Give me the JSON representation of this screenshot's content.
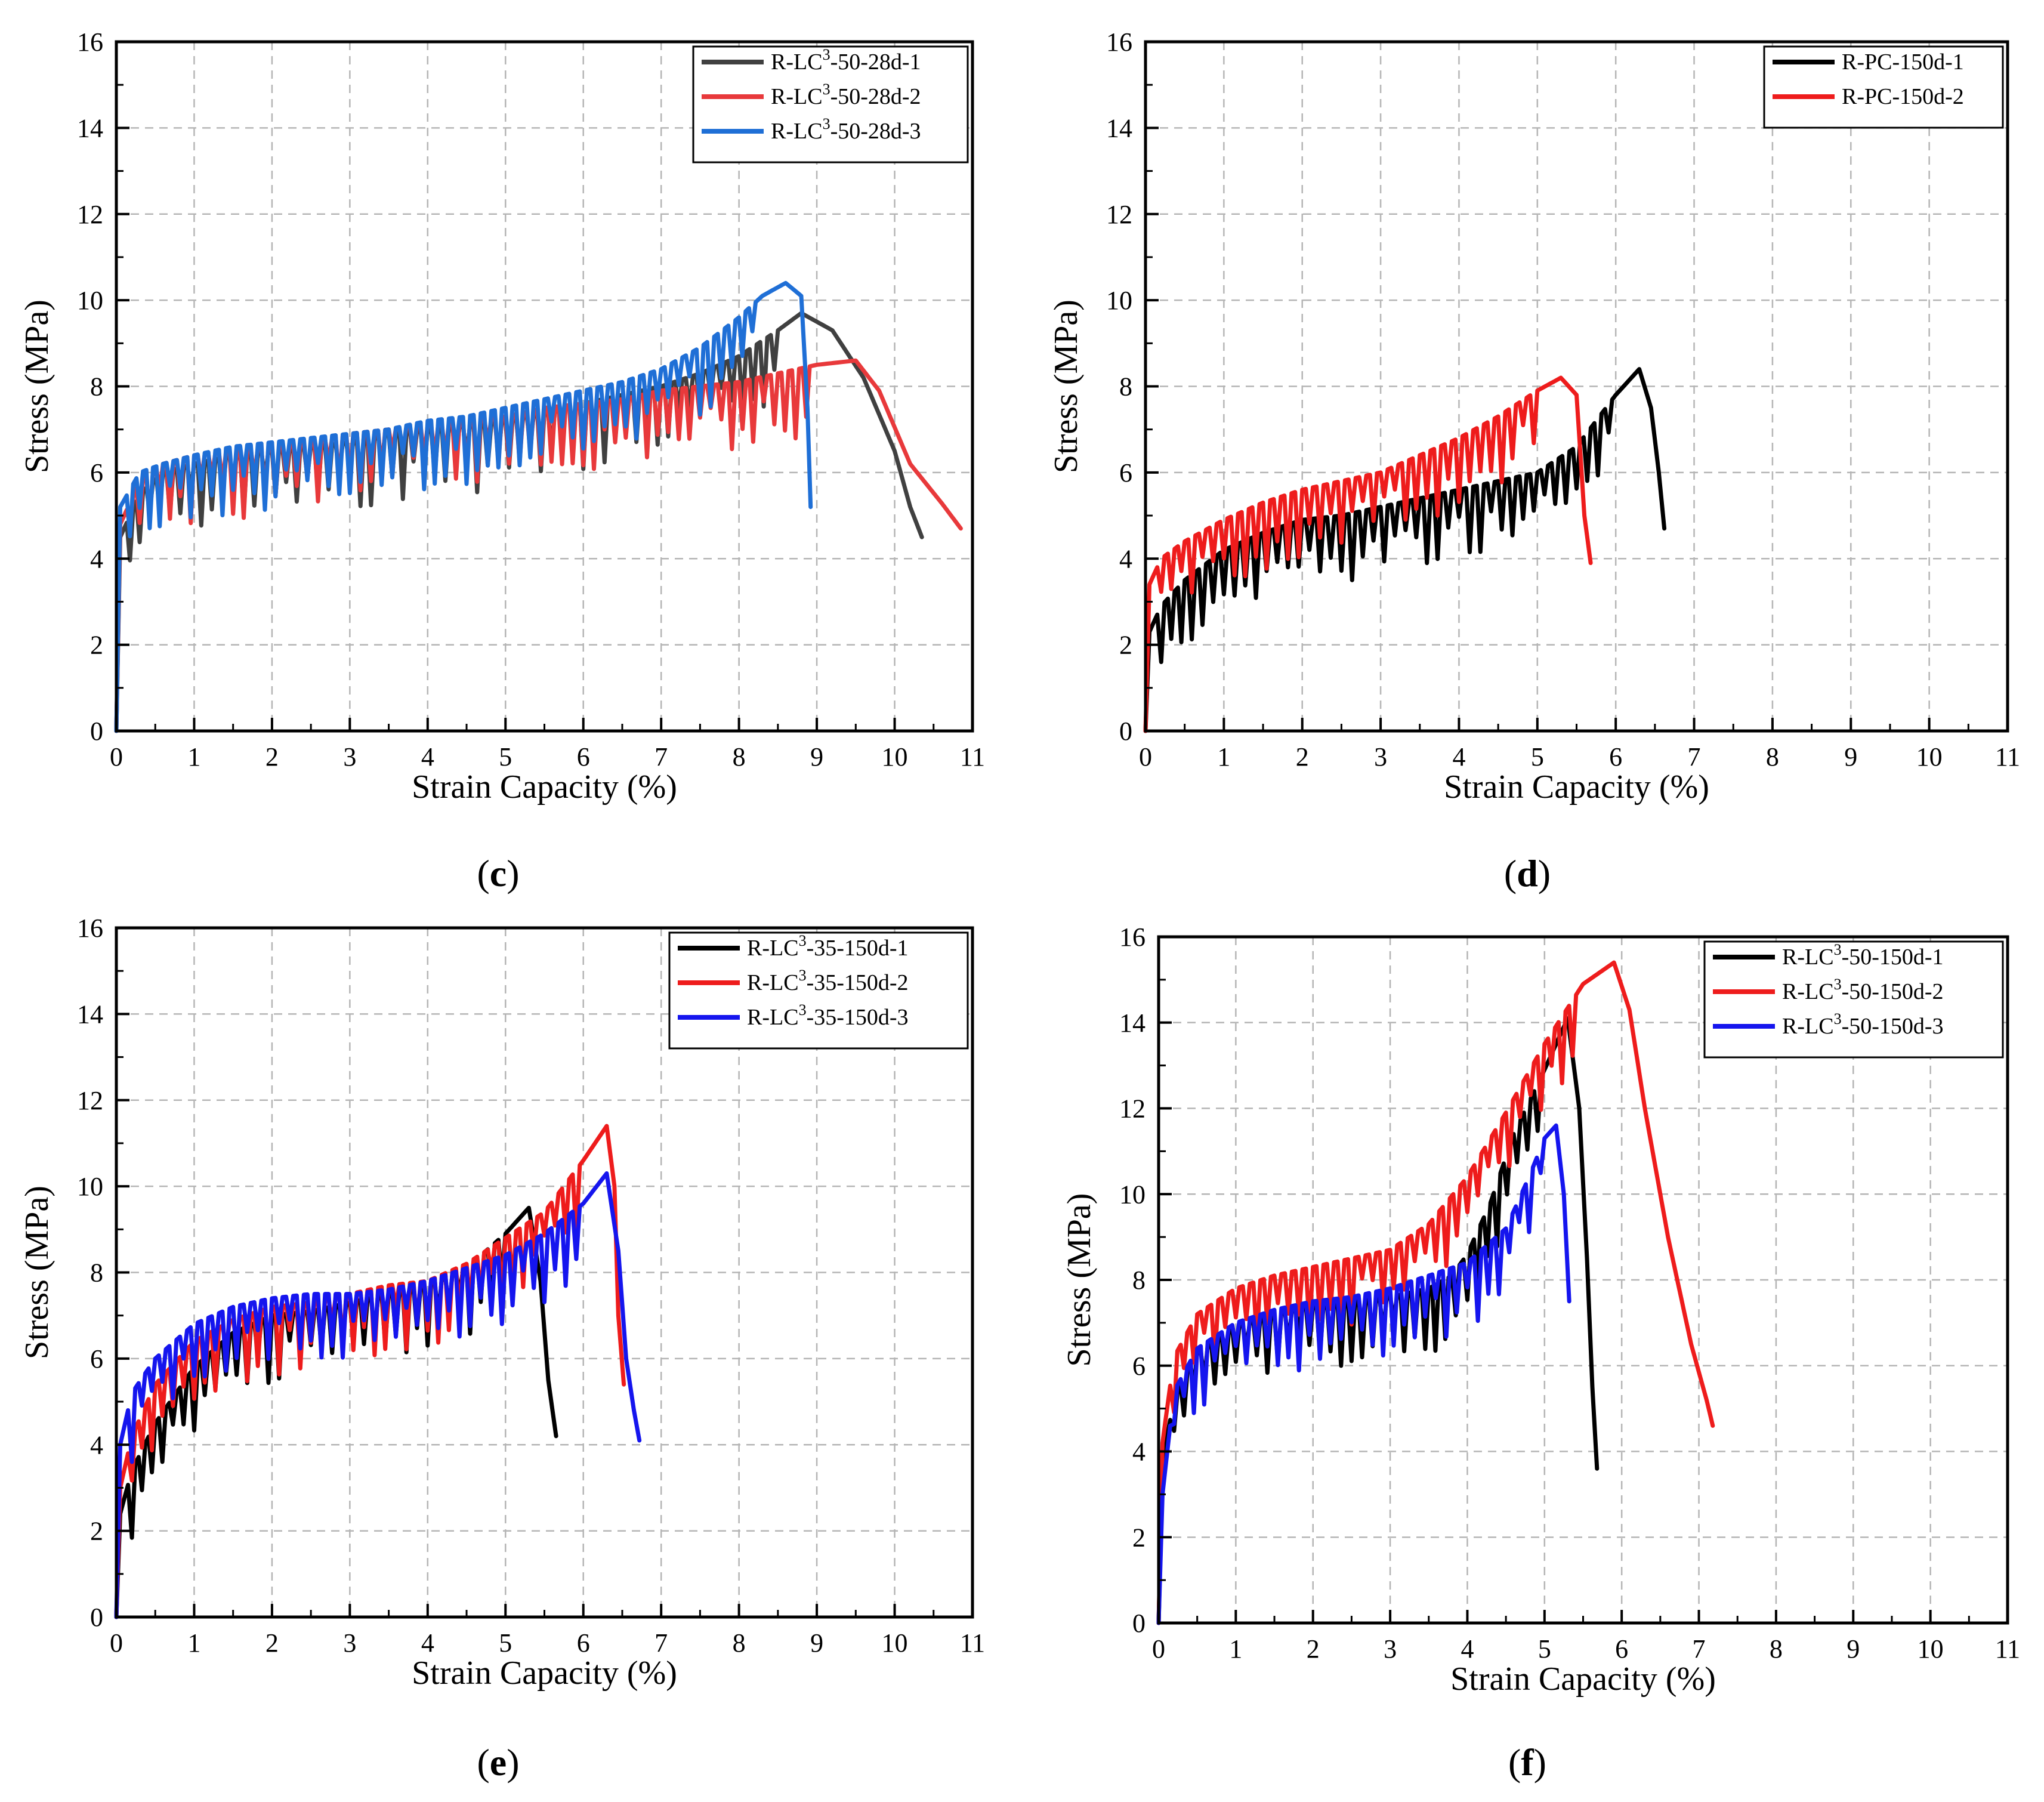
{
  "figure": {
    "panels": [
      {
        "id": "c",
        "caption_open": "(",
        "caption_letter": "c",
        "caption_close": ")"
      },
      {
        "id": "d",
        "caption_open": "(",
        "caption_letter": "d",
        "caption_close": ")"
      },
      {
        "id": "e",
        "caption_open": "(",
        "caption_letter": "e",
        "caption_close": ")"
      },
      {
        "id": "f",
        "caption_open": "(",
        "caption_letter": "f",
        "caption_close": ")"
      }
    ]
  },
  "chart_data": [
    {
      "type": "line",
      "panel": "c",
      "xlabel": "Strain Capacity (%)",
      "ylabel": "Stress (MPa)",
      "xlim": [
        0,
        11
      ],
      "ylim": [
        0,
        16
      ],
      "xticks": [
        0,
        1,
        2,
        3,
        4,
        5,
        6,
        7,
        8,
        9,
        10,
        11
      ],
      "yticks": [
        0,
        2,
        4,
        6,
        8,
        10,
        12,
        14,
        16
      ],
      "grid": true,
      "legend_position": "top-right",
      "series": [
        {
          "name": "R-LC3-50-28d-1",
          "label_pre": "R-LC",
          "label_sup": "3",
          "label_post": "-50-28d-1",
          "color": "#404040",
          "x": [
            0,
            0.05,
            0.3,
            0.6,
            1.0,
            1.5,
            2.0,
            2.5,
            3.0,
            3.5,
            4.0,
            4.5,
            5.0,
            5.5,
            6.0,
            6.5,
            7.0,
            7.5,
            8.0,
            8.5,
            8.8,
            9.2,
            9.6,
            10.0,
            10.2,
            10.35
          ],
          "y": [
            0,
            4.5,
            5.5,
            6.0,
            6.2,
            6.4,
            6.5,
            6.6,
            6.7,
            6.9,
            7.0,
            7.1,
            7.2,
            7.4,
            7.6,
            7.8,
            8.0,
            8.3,
            8.7,
            9.3,
            9.7,
            9.3,
            8.2,
            6.5,
            5.2,
            4.5
          ]
        },
        {
          "name": "R-LC3-50-28d-2",
          "label_pre": "R-LC",
          "label_sup": "3",
          "label_post": "-50-28d-2",
          "color": "#e8393b",
          "x": [
            0,
            0.05,
            0.3,
            0.6,
            1.0,
            1.5,
            2.0,
            2.5,
            3.0,
            3.5,
            4.0,
            4.5,
            5.0,
            5.5,
            6.0,
            6.5,
            7.0,
            7.5,
            8.0,
            8.5,
            9.0,
            9.5,
            9.8,
            10.2,
            10.6,
            10.85
          ],
          "y": [
            0,
            4.8,
            5.8,
            6.2,
            6.4,
            6.5,
            6.6,
            6.7,
            6.9,
            7.0,
            7.1,
            7.2,
            7.3,
            7.5,
            7.6,
            7.7,
            7.9,
            8.0,
            8.1,
            8.3,
            8.5,
            8.6,
            7.9,
            6.2,
            5.3,
            4.7
          ]
        },
        {
          "name": "R-LC3-50-28d-3",
          "label_pre": "R-LC",
          "label_sup": "3",
          "label_post": "-50-28d-3",
          "color": "#1f6fd6",
          "x": [
            0,
            0.05,
            0.3,
            0.6,
            1.0,
            1.5,
            2.0,
            2.5,
            3.0,
            3.5,
            4.0,
            4.5,
            5.0,
            5.5,
            6.0,
            6.5,
            7.0,
            7.5,
            8.0,
            8.3,
            8.6,
            8.8,
            8.88,
            8.92
          ],
          "y": [
            0,
            5.2,
            6.0,
            6.2,
            6.4,
            6.6,
            6.7,
            6.8,
            6.9,
            7.0,
            7.2,
            7.3,
            7.5,
            7.7,
            7.9,
            8.1,
            8.4,
            8.9,
            9.6,
            10.1,
            10.4,
            10.1,
            7.5,
            5.2
          ]
        }
      ]
    },
    {
      "type": "line",
      "panel": "d",
      "xlabel": "Strain Capacity (%)",
      "ylabel": "Stress (MPa)",
      "xlim": [
        0,
        11
      ],
      "ylim": [
        0,
        16
      ],
      "xticks": [
        0,
        1,
        2,
        3,
        4,
        5,
        6,
        7,
        8,
        9,
        10,
        11
      ],
      "yticks": [
        0,
        2,
        4,
        6,
        8,
        10,
        12,
        14,
        16
      ],
      "grid": true,
      "legend_position": "top-right",
      "series": [
        {
          "name": "R-PC-150d-1",
          "label_pre": "R-PC-150d-1",
          "label_sup": "",
          "label_post": "",
          "color": "#000000",
          "x": [
            0,
            0.05,
            0.2,
            0.5,
            1.0,
            1.5,
            2.0,
            2.5,
            3.0,
            3.5,
            4.0,
            4.5,
            5.0,
            5.5,
            6.0,
            6.3,
            6.45,
            6.55,
            6.62
          ],
          "y": [
            0,
            2.3,
            2.9,
            3.5,
            4.2,
            4.6,
            4.9,
            5.0,
            5.2,
            5.4,
            5.6,
            5.8,
            6.0,
            6.6,
            7.8,
            8.4,
            7.5,
            6.0,
            4.7
          ]
        },
        {
          "name": "R-PC-150d-2",
          "label_pre": "R-PC-150d-2",
          "label_sup": "",
          "label_post": "",
          "color": "#ee1c1c",
          "x": [
            0,
            0.05,
            0.2,
            0.5,
            1.0,
            1.5,
            2.0,
            2.5,
            3.0,
            3.5,
            4.0,
            4.5,
            5.0,
            5.3,
            5.5,
            5.6,
            5.68
          ],
          "y": [
            0,
            3.4,
            4.0,
            4.4,
            4.9,
            5.3,
            5.6,
            5.8,
            6.0,
            6.4,
            6.8,
            7.3,
            7.9,
            8.2,
            7.8,
            5.0,
            3.9
          ]
        }
      ]
    },
    {
      "type": "line",
      "panel": "e",
      "xlabel": "Strain Capacity (%)",
      "ylabel": "Stress (MPa)",
      "xlim": [
        0,
        11
      ],
      "ylim": [
        0,
        16
      ],
      "xticks": [
        0,
        1,
        2,
        3,
        4,
        5,
        6,
        7,
        8,
        9,
        10,
        11
      ],
      "yticks": [
        0,
        2,
        4,
        6,
        8,
        10,
        12,
        14,
        16
      ],
      "grid": true,
      "legend_position": "top-right",
      "series": [
        {
          "name": "R-LC3-35-150d-1",
          "label_pre": "R-LC",
          "label_sup": "3",
          "label_post": "-35-150d-1",
          "color": "#000000",
          "x": [
            0,
            0.05,
            0.2,
            0.5,
            1.0,
            1.5,
            2.0,
            2.5,
            3.0,
            3.5,
            4.0,
            4.5,
            5.0,
            5.3,
            5.45,
            5.55,
            5.65
          ],
          "y": [
            0,
            2.4,
            3.4,
            4.5,
            5.8,
            6.6,
            7.0,
            7.1,
            7.3,
            7.5,
            7.7,
            8.1,
            8.9,
            9.5,
            7.8,
            5.5,
            4.2
          ]
        },
        {
          "name": "R-LC3-35-150d-2",
          "label_pre": "R-LC",
          "label_sup": "3",
          "label_post": "-35-150d-2",
          "color": "#ee1c1c",
          "x": [
            0,
            0.05,
            0.2,
            0.5,
            1.0,
            1.5,
            2.0,
            2.5,
            3.0,
            3.5,
            4.0,
            4.5,
            5.0,
            5.5,
            6.0,
            6.3,
            6.4,
            6.45,
            6.52
          ],
          "y": [
            0,
            3.0,
            4.2,
            5.4,
            6.4,
            6.9,
            7.2,
            7.3,
            7.5,
            7.7,
            7.8,
            8.2,
            8.8,
            9.4,
            10.6,
            11.4,
            10.0,
            7.0,
            5.4
          ]
        },
        {
          "name": "R-LC3-35-150d-3",
          "label_pre": "R-LC",
          "label_sup": "3",
          "label_post": "-35-150d-3",
          "color": "#1515ee",
          "x": [
            0,
            0.05,
            0.2,
            0.5,
            1.0,
            1.5,
            2.0,
            2.5,
            3.0,
            3.5,
            4.0,
            4.5,
            5.0,
            5.5,
            6.0,
            6.3,
            6.45,
            6.55,
            6.65,
            6.72
          ],
          "y": [
            0,
            4.0,
            5.2,
            6.0,
            6.8,
            7.2,
            7.4,
            7.5,
            7.5,
            7.6,
            7.8,
            8.1,
            8.4,
            8.9,
            9.6,
            10.3,
            8.5,
            6.0,
            4.8,
            4.1
          ]
        }
      ]
    },
    {
      "type": "line",
      "panel": "f",
      "xlabel": "Strain Capacity (%)",
      "ylabel": "Stress (MPa)",
      "xlim": [
        0,
        11
      ],
      "ylim": [
        0,
        16
      ],
      "xticks": [
        0,
        1,
        2,
        3,
        4,
        5,
        6,
        7,
        8,
        9,
        10,
        11
      ],
      "yticks": [
        0,
        2,
        4,
        6,
        8,
        10,
        12,
        14,
        16
      ],
      "grid": true,
      "legend_position": "top-right",
      "series": [
        {
          "name": "R-LC3-50-150d-1",
          "label_pre": "R-LC",
          "label_sup": "3",
          "label_post": "-50-150d-1",
          "color": "#000000",
          "x": [
            0,
            0.05,
            0.2,
            0.5,
            1.0,
            1.5,
            2.0,
            2.5,
            3.0,
            3.5,
            3.8,
            4.0,
            4.3,
            4.6,
            5.0,
            5.3,
            5.45,
            5.55,
            5.62,
            5.68
          ],
          "y": [
            0,
            3.8,
            5.2,
            6.3,
            6.9,
            7.2,
            7.4,
            7.5,
            7.6,
            7.8,
            8.1,
            8.6,
            9.8,
            11.4,
            12.9,
            14.1,
            12.0,
            8.5,
            5.5,
            3.6
          ]
        },
        {
          "name": "R-LC3-50-150d-2",
          "label_pre": "R-LC",
          "label_sup": "3",
          "label_post": "-50-150d-2",
          "color": "#ee1c1c",
          "x": [
            0,
            0.05,
            0.2,
            0.5,
            1.0,
            1.5,
            2.0,
            2.5,
            3.0,
            3.5,
            4.0,
            4.5,
            5.0,
            5.5,
            5.9,
            6.1,
            6.3,
            6.6,
            6.9,
            7.1,
            7.18
          ],
          "y": [
            0,
            4.2,
            6.2,
            7.2,
            7.8,
            8.1,
            8.3,
            8.5,
            8.7,
            9.3,
            10.4,
            11.9,
            13.5,
            14.9,
            15.4,
            14.3,
            12.0,
            9.0,
            6.5,
            5.2,
            4.6
          ]
        },
        {
          "name": "R-LC3-50-150d-3",
          "label_pre": "R-LC",
          "label_sup": "3",
          "label_post": "-50-150d-3",
          "color": "#1515ee",
          "x": [
            0,
            0.05,
            0.2,
            0.5,
            1.0,
            1.5,
            2.0,
            2.5,
            3.0,
            3.5,
            4.0,
            4.5,
            4.8,
            5.0,
            5.15,
            5.25,
            5.32
          ],
          "y": [
            0,
            3.0,
            5.4,
            6.4,
            7.0,
            7.3,
            7.5,
            7.6,
            7.8,
            8.1,
            8.4,
            9.2,
            10.4,
            11.3,
            11.6,
            10.0,
            7.5
          ]
        }
      ]
    }
  ]
}
